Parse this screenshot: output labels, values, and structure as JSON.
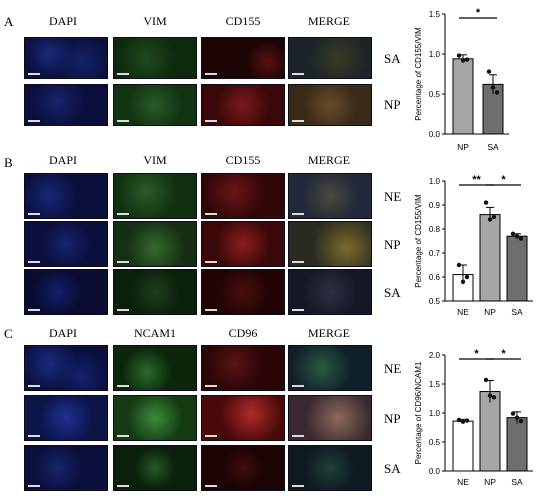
{
  "panels": [
    {
      "letter": "A",
      "columns": [
        "DAPI",
        "VIM",
        "CD155",
        "MERGE"
      ],
      "rows": [
        "SA",
        "NP"
      ]
    },
    {
      "letter": "B",
      "columns": [
        "DAPI",
        "VIM",
        "CD155",
        "MERGE"
      ],
      "rows": [
        "NE",
        "NP",
        "SA"
      ]
    },
    {
      "letter": "C",
      "columns": [
        "DAPI",
        "NCAM1",
        "CD96",
        "MERGE"
      ],
      "rows": [
        "NE",
        "NP",
        "SA"
      ]
    }
  ],
  "colors": {
    "dapi": "#0a0f3c",
    "green": "#0d2a0d",
    "red": "#3a0808",
    "merge": "#2a2a1a",
    "bar_np": "#a6a6a6",
    "bar_sa": "#6e6e6e",
    "bar_ne": "#ffffff"
  },
  "chart_data": [
    {
      "type": "bar",
      "categories": [
        "NP",
        "SA"
      ],
      "values": [
        0.94,
        0.62
      ],
      "errors": [
        0.05,
        0.12
      ],
      "points": [
        [
          0.98,
          0.92,
          0.93
        ],
        [
          0.78,
          0.58,
          0.52
        ]
      ],
      "ylabel": "Percentage of CD155/VIM",
      "ylim": [
        0.0,
        1.5
      ],
      "yticks": [
        "0.0",
        "0.5",
        "1.0",
        "1.5"
      ],
      "significance": [
        {
          "pair": [
            "NP",
            "SA"
          ],
          "label": "*"
        }
      ]
    },
    {
      "type": "bar",
      "categories": [
        "NE",
        "NP",
        "SA"
      ],
      "values": [
        0.61,
        0.86,
        0.77
      ],
      "errors": [
        0.04,
        0.03,
        0.01
      ],
      "points": [
        [
          0.65,
          0.58,
          0.6
        ],
        [
          0.91,
          0.84,
          0.85
        ],
        [
          0.78,
          0.77,
          0.76
        ]
      ],
      "ylabel": "Percentage of CD155/VIM",
      "ylim": [
        0.5,
        1.0
      ],
      "yticks": [
        "0.5",
        "0.6",
        "0.7",
        "0.8",
        "0.9",
        "1.0"
      ],
      "significance": [
        {
          "pair": [
            "NE",
            "NP"
          ],
          "label": "**"
        },
        {
          "pair": [
            "NP",
            "SA"
          ],
          "label": "*"
        }
      ]
    },
    {
      "type": "bar",
      "categories": [
        "NE",
        "NP",
        "SA"
      ],
      "values": [
        0.86,
        1.37,
        0.92
      ],
      "errors": [
        0.03,
        0.19,
        0.1
      ],
      "points": [
        [
          0.88,
          0.85,
          0.87
        ],
        [
          1.57,
          1.3,
          1.27
        ],
        [
          0.99,
          0.92,
          0.86
        ]
      ],
      "ylabel": "Percentage of CD96/NCAM1",
      "ylim": [
        0.0,
        2.0
      ],
      "yticks": [
        "0.0",
        "0.5",
        "1.0",
        "1.5",
        "2.0"
      ],
      "significance": [
        {
          "pair": [
            "NE",
            "NP"
          ],
          "label": "*"
        },
        {
          "pair": [
            "NP",
            "SA"
          ],
          "label": "*"
        }
      ]
    }
  ]
}
